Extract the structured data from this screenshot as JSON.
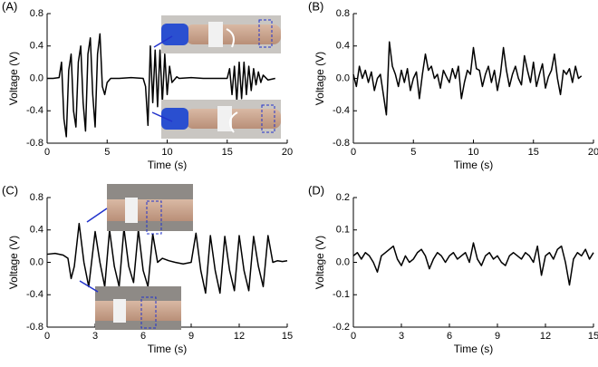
{
  "chart_data": [
    {
      "type": "line",
      "label": "(A)",
      "xlabel": "Time (s)",
      "ylabel": "Voltage (V)",
      "xlim": [
        0,
        20
      ],
      "xticks": [
        0,
        5,
        10,
        15,
        20
      ],
      "ylim": [
        -0.8,
        0.8
      ],
      "yticks": [
        -0.8,
        -0.4,
        {
          "value": 0,
          "label": "0.0"
        },
        0.4,
        0.8
      ],
      "color": "#000000",
      "x": [
        0,
        0.5,
        1.0,
        1.2,
        1.4,
        1.6,
        1.8,
        2.0,
        2.2,
        2.4,
        2.6,
        2.8,
        3.0,
        3.2,
        3.4,
        3.6,
        3.8,
        4.0,
        4.2,
        4.4,
        4.6,
        4.8,
        5.0,
        5.3,
        6,
        7,
        8,
        8.2,
        8.4,
        8.6,
        8.8,
        9.0,
        9.2,
        9.4,
        9.6,
        9.8,
        10.0,
        10.2,
        10.4,
        10.8,
        11,
        12,
        13,
        14,
        15,
        15.2,
        15.4,
        15.6,
        15.8,
        16.0,
        16.2,
        16.4,
        16.6,
        16.8,
        17.0,
        17.2,
        17.4,
        17.6,
        17.8,
        18,
        18.4,
        19
      ],
      "values": [
        0,
        0,
        0.01,
        0.2,
        -0.5,
        -0.72,
        0.1,
        0.3,
        -0.4,
        -0.6,
        0.2,
        0.4,
        -0.3,
        -0.65,
        0.3,
        0.5,
        -0.2,
        -0.6,
        0.3,
        0.55,
        -0.1,
        -0.2,
        -0.05,
        0,
        0,
        0.01,
        0,
        -0.1,
        -0.58,
        0.4,
        -0.3,
        0.35,
        -0.35,
        0.35,
        -0.3,
        0.3,
        -0.2,
        0.15,
        -0.05,
        0.02,
        0,
        0.01,
        0,
        0,
        0,
        0.12,
        -0.2,
        0.15,
        -0.28,
        0.2,
        -0.25,
        0.2,
        -0.2,
        0.15,
        -0.15,
        0.12,
        -0.08,
        0.08,
        -0.05,
        0.04,
        -0.02,
        0
      ]
    },
    {
      "type": "line",
      "label": "(B)",
      "xlabel": "Time (s)",
      "ylabel": "Voltage (V)",
      "xlim": [
        0,
        20
      ],
      "xticks": [
        0,
        5,
        10,
        15,
        20
      ],
      "ylim": [
        -0.8,
        0.8
      ],
      "yticks": [
        -0.8,
        -0.4,
        {
          "value": 0,
          "label": "0.0"
        },
        0.4,
        0.8
      ],
      "color": "#000000",
      "x": [
        0,
        0.25,
        0.5,
        0.75,
        1,
        1.25,
        1.5,
        1.75,
        2,
        2.25,
        2.5,
        2.75,
        3,
        3.25,
        3.5,
        3.75,
        4,
        4.25,
        4.5,
        4.75,
        5,
        5.25,
        5.5,
        5.75,
        6,
        6.25,
        6.5,
        6.75,
        7,
        7.25,
        7.5,
        7.75,
        8,
        8.25,
        8.5,
        8.75,
        9,
        9.25,
        9.5,
        9.75,
        10,
        10.25,
        10.5,
        10.75,
        11,
        11.25,
        11.5,
        11.75,
        12,
        12.25,
        12.5,
        12.75,
        13,
        13.25,
        13.5,
        13.75,
        14,
        14.25,
        14.5,
        14.75,
        15,
        15.25,
        15.5,
        15.75,
        16,
        16.25,
        16.5,
        16.75,
        17,
        17.25,
        17.5,
        17.75,
        18,
        18.25,
        18.5,
        18.75,
        19
      ],
      "values": [
        0.05,
        -0.1,
        0.15,
        0.0,
        0.1,
        -0.05,
        0.08,
        -0.15,
        0.0,
        0.05,
        -0.2,
        -0.45,
        0.45,
        0.15,
        0.05,
        -0.1,
        0.1,
        -0.05,
        0.12,
        -0.15,
        0.0,
        0.08,
        -0.25,
        0.05,
        0.3,
        0.1,
        0.15,
        0.0,
        0.05,
        -0.12,
        0.1,
        0.02,
        -0.05,
        0.12,
        0.0,
        0.15,
        -0.25,
        -0.05,
        0.1,
        0.05,
        0.38,
        0.12,
        0.1,
        -0.1,
        0.05,
        0.15,
        -0.05,
        0.1,
        -0.15,
        0.05,
        0.38,
        0.1,
        -0.1,
        0.05,
        0.15,
        0.0,
        -0.08,
        0.28,
        0.1,
        -0.05,
        0.2,
        -0.1,
        0.05,
        0.18,
        -0.12,
        0.02,
        0.1,
        0.3,
        0.0,
        -0.2,
        0.1,
        0.05,
        0.12,
        -0.05,
        0.15,
        0.0,
        0.03
      ]
    },
    {
      "type": "line",
      "label": "(C)",
      "xlabel": "Time (s)",
      "ylabel": "Voltage (V)",
      "xlim": [
        0,
        15
      ],
      "xticks": [
        0,
        3,
        6,
        9,
        12,
        15
      ],
      "ylim": [
        -0.8,
        0.8
      ],
      "yticks": [
        -0.8,
        -0.4,
        {
          "value": 0,
          "label": "0.0"
        },
        0.4,
        0.8
      ],
      "color": "#000000",
      "x": [
        0,
        0.5,
        1,
        1.3,
        1.5,
        1.7,
        2.0,
        2.3,
        2.6,
        3.0,
        3.3,
        3.6,
        3.9,
        4.2,
        4.5,
        4.8,
        5.1,
        5.4,
        5.7,
        6.0,
        6.3,
        6.6,
        6.9,
        7.2,
        7.6,
        8,
        8.5,
        9.0,
        9.3,
        9.6,
        9.9,
        10.2,
        10.5,
        10.8,
        11.1,
        11.4,
        11.7,
        12.0,
        12.3,
        12.6,
        12.9,
        13.2,
        13.5,
        13.8,
        14.1,
        14.4,
        14.7,
        15
      ],
      "values": [
        0.1,
        0.11,
        0.09,
        0.05,
        -0.2,
        -0.05,
        0.48,
        0.0,
        -0.3,
        0.38,
        0.0,
        -0.3,
        0.4,
        -0.05,
        -0.3,
        0.42,
        -0.05,
        -0.25,
        0.4,
        -0.1,
        -0.3,
        0.35,
        0.0,
        0.05,
        0.02,
        0.0,
        -0.02,
        0.0,
        0.36,
        -0.1,
        -0.38,
        0.33,
        -0.1,
        -0.38,
        0.32,
        -0.1,
        -0.35,
        0.33,
        -0.1,
        -0.35,
        0.32,
        -0.05,
        -0.3,
        0.33,
        0.0,
        0.02,
        0.01,
        0.02
      ]
    },
    {
      "type": "line",
      "label": "(D)",
      "xlabel": "Time (s)",
      "ylabel": "Voltage (V)",
      "xlim": [
        0,
        15
      ],
      "xticks": [
        0,
        3,
        6,
        9,
        12,
        15
      ],
      "ylim": [
        -0.2,
        0.2
      ],
      "yticks": [
        -0.2,
        -0.1,
        {
          "value": 0,
          "label": "0.0"
        },
        0.1,
        0.2
      ],
      "color": "#000000",
      "x": [
        0,
        0.25,
        0.5,
        0.75,
        1,
        1.25,
        1.5,
        1.75,
        2,
        2.25,
        2.5,
        2.75,
        3,
        3.25,
        3.5,
        3.75,
        4,
        4.25,
        4.5,
        4.75,
        5,
        5.25,
        5.5,
        5.75,
        6,
        6.25,
        6.5,
        6.75,
        7,
        7.25,
        7.5,
        7.75,
        8,
        8.25,
        8.5,
        8.75,
        9,
        9.25,
        9.5,
        9.75,
        10,
        10.25,
        10.5,
        10.75,
        11,
        11.25,
        11.5,
        11.75,
        12,
        12.25,
        12.5,
        12.75,
        13,
        13.25,
        13.5,
        13.75,
        14,
        14.25,
        14.5,
        14.75,
        15
      ],
      "values": [
        0.02,
        0.03,
        0.01,
        0.03,
        0.02,
        0.0,
        -0.03,
        0.02,
        0.03,
        0.04,
        0.05,
        0.01,
        -0.01,
        0.02,
        0.0,
        0.01,
        0.03,
        0.04,
        0.02,
        -0.02,
        0.01,
        0.03,
        0.02,
        0.0,
        0.02,
        0.03,
        0.01,
        0.02,
        0.03,
        0.0,
        0.06,
        0.01,
        -0.01,
        0.02,
        0.03,
        0.01,
        0.02,
        0.0,
        -0.01,
        0.02,
        0.03,
        0.02,
        0.01,
        0.03,
        0.02,
        0.0,
        0.05,
        -0.04,
        0.02,
        0.03,
        0.01,
        0.04,
        0.05,
        0.0,
        -0.07,
        0.01,
        0.03,
        0.02,
        0.04,
        0.01,
        0.03
      ]
    }
  ]
}
